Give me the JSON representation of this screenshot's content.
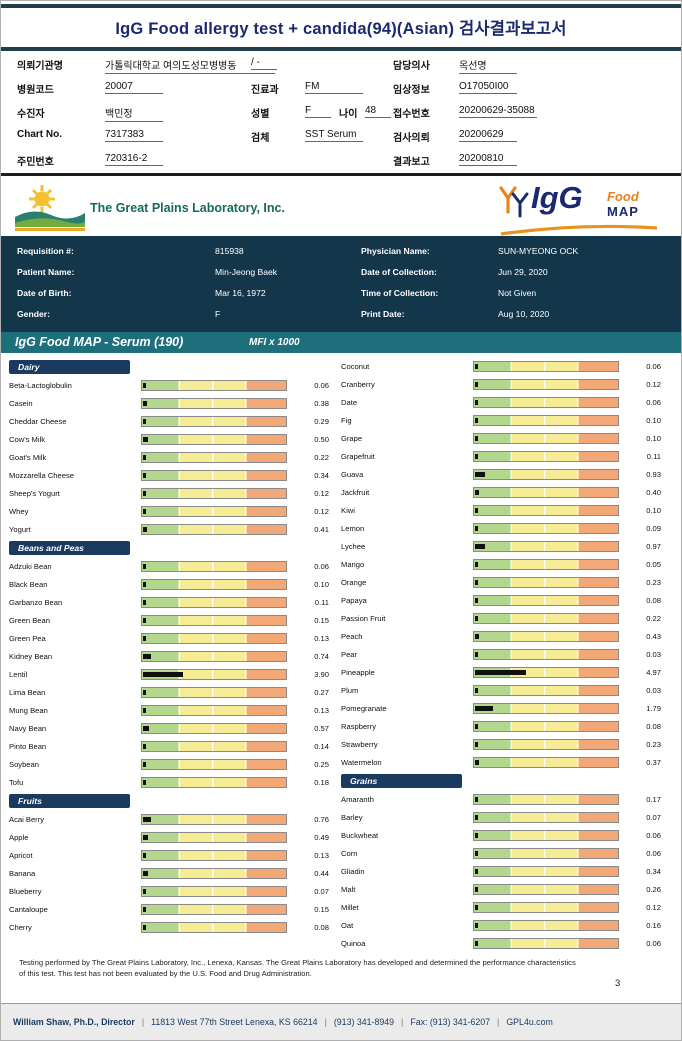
{
  "title": "IgG Food allergy test + candida(94)(Asian) 검사결과보고서",
  "palette": {
    "header_navy": "#1b2a70",
    "band_teal": "#1e6f7c",
    "band_navy": "#14364a",
    "category_navy": "#1b3a5f",
    "bar_green": "#b4d78e",
    "bar_yellow": "#f5ec95",
    "bar_orange": "#f3a878",
    "bar_fill_black": "#101010",
    "accent_gold": "#e9a72c",
    "accent_orange": "#e8821e"
  },
  "patient_info": {
    "org_label": "의뢰기관명",
    "org_value": "가톨릭대학교 여의도성모병병동",
    "org_extra": "/ -",
    "hospital_code_label": "병원코드",
    "hospital_code": "20007",
    "patient_label": "수진자",
    "patient_name_kr": "백민정",
    "chart_label": "Chart No.",
    "chart_no": "7317383",
    "resident_label": "주민번호",
    "resident_no": "720316-2",
    "dept_label": "진료과",
    "dept": "FM",
    "sex_label": "성별",
    "sex": "F",
    "age_label": "나이",
    "age": "48",
    "specimen_label": "검체",
    "specimen": "SST Serum",
    "doctor_label": "담당의사",
    "doctor": "옥선명",
    "clinical_label": "임상정보",
    "clinical_info": "O17050I00",
    "receipt_label": "접수번호",
    "receipt_no": "20200629-35088",
    "request_label": "검사의뢰",
    "request_date": "20200629",
    "report_label": "결과보고",
    "report_date": "20200810"
  },
  "logos": {
    "gpl_name": "The Great Plains Laboratory, Inc.",
    "igg": "IgG",
    "food": "Food",
    "map": "MAP"
  },
  "requisition": {
    "left": [
      {
        "label": "Requisition #:",
        "value": "815938"
      },
      {
        "label": "Patient Name:",
        "value": "Min-Jeong Baek"
      },
      {
        "label": "Date of Birth:",
        "value": "Mar 16, 1972"
      },
      {
        "label": "Gender:",
        "value": "F"
      }
    ],
    "right": [
      {
        "label": "Physician Name:",
        "value": "SUN-MYEONG OCK"
      },
      {
        "label": "Date of Collection:",
        "value": "Jun 29, 2020"
      },
      {
        "label": "Time of Collection:",
        "value": "Not Given"
      },
      {
        "label": "Print Date:",
        "value": "Aug 10, 2020"
      }
    ]
  },
  "food_map": {
    "band_title": "IgG Food MAP - Serum (190)",
    "unit_label": "MFI x 1000",
    "scale_max": 14,
    "columns": [
      {
        "sections": [
          {
            "name": "Dairy",
            "items": [
              {
                "name": "Beta-Lactoglobulin",
                "value": 0.06
              },
              {
                "name": "Casein",
                "value": 0.38
              },
              {
                "name": "Cheddar Cheese",
                "value": 0.29
              },
              {
                "name": "Cow's Milk",
                "value": 0.5
              },
              {
                "name": "Goat's Milk",
                "value": 0.22
              },
              {
                "name": "Mozzarella Cheese",
                "value": 0.34
              },
              {
                "name": "Sheep's Yogurt",
                "value": 0.12
              },
              {
                "name": "Whey",
                "value": 0.12
              },
              {
                "name": "Yogurt",
                "value": 0.41
              }
            ]
          },
          {
            "name": "Beans and Peas",
            "items": [
              {
                "name": "Adzuki Bean",
                "value": 0.06
              },
              {
                "name": "Black Bean",
                "value": 0.1
              },
              {
                "name": "Garbanzo Bean",
                "value": 0.11
              },
              {
                "name": "Green Bean",
                "value": 0.15
              },
              {
                "name": "Green Pea",
                "value": 0.13
              },
              {
                "name": "Kidney Bean",
                "value": 0.74
              },
              {
                "name": "Lentil",
                "value": 3.9
              },
              {
                "name": "Lima Bean",
                "value": 0.27
              },
              {
                "name": "Mung Bean",
                "value": 0.13
              },
              {
                "name": "Navy Bean",
                "value": 0.57
              },
              {
                "name": "Pinto Bean",
                "value": 0.14
              },
              {
                "name": "Soybean",
                "value": 0.25
              },
              {
                "name": "Tofu",
                "value": 0.18
              }
            ]
          },
          {
            "name": "Fruits",
            "items": [
              {
                "name": "Acai Berry",
                "value": 0.76
              },
              {
                "name": "Apple",
                "value": 0.49
              },
              {
                "name": "Apricot",
                "value": 0.13
              },
              {
                "name": "Banana",
                "value": 0.44
              },
              {
                "name": "Blueberry",
                "value": 0.07
              },
              {
                "name": "Cantaloupe",
                "value": 0.15
              },
              {
                "name": "Cherry",
                "value": 0.08
              }
            ]
          }
        ]
      },
      {
        "sections": [
          {
            "name": null,
            "items": [
              {
                "name": "Coconut",
                "value": 0.06
              },
              {
                "name": "Cranberry",
                "value": 0.12
              },
              {
                "name": "Date",
                "value": 0.06
              },
              {
                "name": "Fig",
                "value": 0.1
              },
              {
                "name": "Grape",
                "value": 0.1
              },
              {
                "name": "Grapefruit",
                "value": 0.11
              },
              {
                "name": "Guava",
                "value": 0.93
              },
              {
                "name": "Jackfruit",
                "value": 0.4
              },
              {
                "name": "Kiwi",
                "value": 0.1
              },
              {
                "name": "Lemon",
                "value": 0.09
              },
              {
                "name": "Lychee",
                "value": 0.97
              },
              {
                "name": "Mango",
                "value": 0.05
              },
              {
                "name": "Orange",
                "value": 0.23
              },
              {
                "name": "Papaya",
                "value": 0.08
              },
              {
                "name": "Passion Fruit",
                "value": 0.22
              },
              {
                "name": "Peach",
                "value": 0.43
              },
              {
                "name": "Pear",
                "value": 0.03
              },
              {
                "name": "Pineapple",
                "value": 4.97
              },
              {
                "name": "Plum",
                "value": 0.03
              },
              {
                "name": "Pomegranate",
                "value": 1.79
              },
              {
                "name": "Raspberry",
                "value": 0.08
              },
              {
                "name": "Strawberry",
                "value": 0.23
              },
              {
                "name": "Watermelon",
                "value": 0.37
              }
            ]
          },
          {
            "name": "Grains",
            "items": [
              {
                "name": "Amaranth",
                "value": 0.17
              },
              {
                "name": "Barley",
                "value": 0.07
              },
              {
                "name": "Buckwheat",
                "value": 0.06
              },
              {
                "name": "Corn",
                "value": 0.06
              },
              {
                "name": "Gliadin",
                "value": 0.34
              },
              {
                "name": "Malt",
                "value": 0.26
              },
              {
                "name": "Millet",
                "value": 0.12
              },
              {
                "name": "Oat",
                "value": 0.16
              },
              {
                "name": "Quinoa",
                "value": 0.06
              }
            ]
          }
        ]
      }
    ]
  },
  "footer": {
    "disclaimer": "Testing performed by The Great Plains Laboratory, Inc., Lenexa, Kansas.  The Great Plains Laboratory has developed and determined the performance characteristics of this test.  This test has not been evaluated by the U.S. Food and Drug Administration.",
    "page_number": "3",
    "director": "William Shaw, Ph.D., Director",
    "address": "11813 West 77th Street Lenexa, KS 66214",
    "phone": "(913) 341-8949",
    "fax": "Fax: (913) 341-6207",
    "website": "GPL4u.com",
    "separator": "|"
  }
}
